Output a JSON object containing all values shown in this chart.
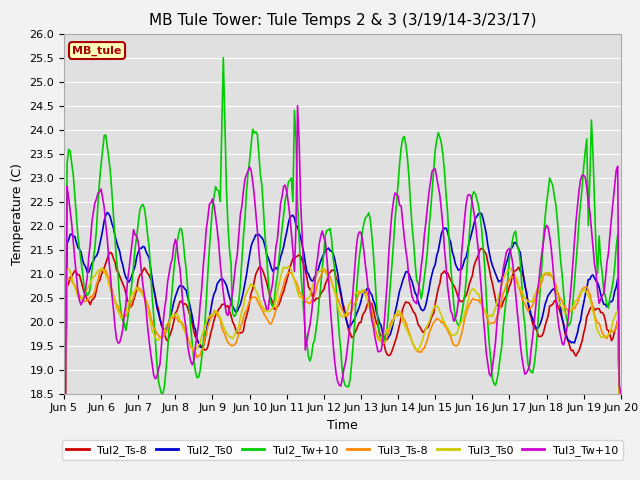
{
  "title": "MB Tule Tower: Tule Temps 2 & 3 (3/19/14-3/23/17)",
  "xlabel": "Time",
  "ylabel": "Temperature (C)",
  "ylim": [
    18.5,
    26.0
  ],
  "yticks": [
    18.5,
    19.0,
    19.5,
    20.0,
    20.5,
    21.0,
    21.5,
    22.0,
    22.5,
    23.0,
    23.5,
    24.0,
    24.5,
    25.0,
    25.5,
    26.0
  ],
  "xtick_labels": [
    "Jun 5",
    "Jun 6",
    "Jun 7",
    "Jun 8",
    "Jun 9",
    "Jun 10",
    "Jun 11",
    "Jun 12",
    "Jun 13",
    "Jun 14",
    "Jun 15",
    "Jun 16",
    "Jun 17",
    "Jun 18",
    "Jun 19",
    "Jun 20"
  ],
  "legend_title": "MB_tule",
  "legend_title_color": "#aa0000",
  "legend_box_facecolor": "#ffffbb",
  "legend_box_edgecolor": "#aa0000",
  "series": [
    {
      "label": "Tul2_Ts-8",
      "color": "#cc0000"
    },
    {
      "label": "Tul2_Ts0",
      "color": "#0000cc"
    },
    {
      "label": "Tul2_Tw+10",
      "color": "#00cc00"
    },
    {
      "label": "Tul3_Ts-8",
      "color": "#ff8800"
    },
    {
      "label": "Tul3_Ts0",
      "color": "#cccc00"
    },
    {
      "label": "Tul3_Tw+10",
      "color": "#cc00cc"
    }
  ],
  "plot_bg": "#e0e0e0",
  "fig_bg": "#f2f2f2",
  "grid_color": "#ffffff",
  "title_fontsize": 11,
  "axis_fontsize": 9,
  "tick_fontsize": 8,
  "linewidth": 1.2
}
